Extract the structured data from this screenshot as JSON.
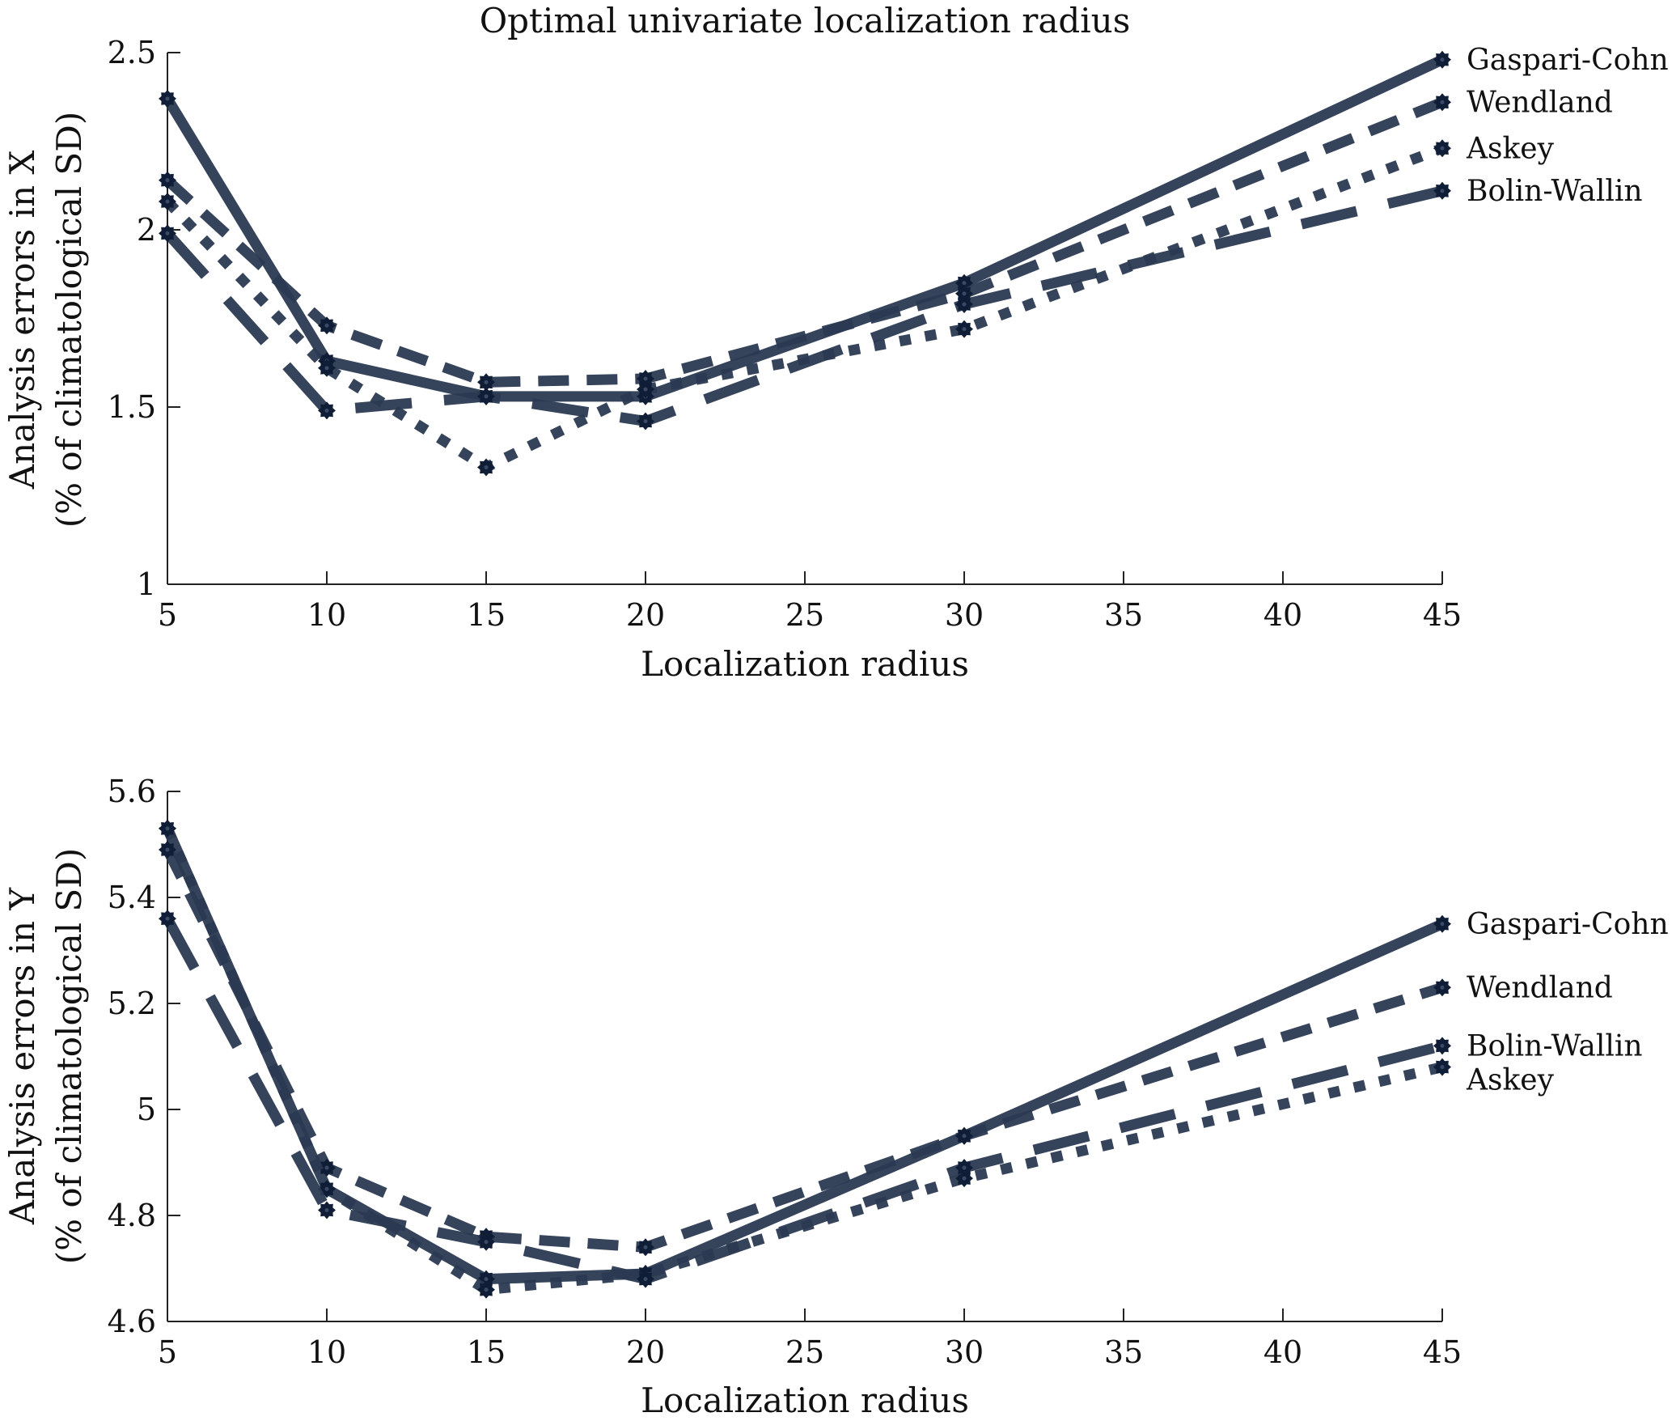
{
  "chart_data": [
    {
      "type": "line",
      "title": "Optimal univariate localization radius",
      "xlabel": "Localization radius",
      "ylabel_line1": "Analysis errors in X",
      "ylabel_line2": "(% of climatological SD)",
      "xlim": [
        5,
        45
      ],
      "ylim": [
        1,
        2.5
      ],
      "xticks": [
        5,
        10,
        15,
        20,
        25,
        30,
        35,
        40,
        45
      ],
      "xtick_labels": [
        "5",
        "10",
        "15",
        "20",
        "25",
        "30",
        "35",
        "40",
        "45"
      ],
      "yticks": [
        1,
        1.5,
        2,
        2.5
      ],
      "ytick_labels": [
        "1",
        "1.5",
        "2",
        "2.5"
      ],
      "grid": false,
      "legend_placement": "right (labels at line ends)",
      "x": [
        5,
        10,
        15,
        20,
        30,
        45
      ],
      "series": [
        {
          "name": "Gaspari-Cohn",
          "style": "solid",
          "values": [
            2.37,
            1.63,
            1.53,
            1.53,
            1.85,
            2.48
          ]
        },
        {
          "name": "Wendland",
          "style": "dashed",
          "values": [
            2.14,
            1.73,
            1.57,
            1.58,
            1.82,
            2.36
          ]
        },
        {
          "name": "Askey",
          "style": "dotted",
          "values": [
            2.08,
            1.61,
            1.33,
            1.55,
            1.72,
            2.23
          ]
        },
        {
          "name": "Bolin-Wallin",
          "style": "long-dash",
          "values": [
            1.99,
            1.49,
            1.53,
            1.46,
            1.79,
            2.11
          ]
        }
      ],
      "legend_order": [
        "Gaspari-Cohn",
        "Wendland",
        "Askey",
        "Bolin-Wallin"
      ]
    },
    {
      "type": "line",
      "title": "",
      "xlabel": "Localization radius",
      "ylabel_line1": "Analysis errors in Y",
      "ylabel_line2": "(% of climatological SD)",
      "xlim": [
        5,
        45
      ],
      "ylim": [
        4.6,
        5.6
      ],
      "xticks": [
        5,
        10,
        15,
        20,
        25,
        30,
        35,
        40,
        45
      ],
      "xtick_labels": [
        "5",
        "10",
        "15",
        "20",
        "25",
        "30",
        "35",
        "40",
        "45"
      ],
      "yticks": [
        4.6,
        4.8,
        5.0,
        5.2,
        5.4,
        5.6
      ],
      "ytick_labels": [
        "4.6",
        "4.8",
        "5",
        "5.2",
        "5.4",
        "5.6"
      ],
      "grid": false,
      "legend_placement": "right (labels at line ends)",
      "x": [
        5,
        10,
        15,
        20,
        30,
        45
      ],
      "series": [
        {
          "name": "Gaspari-Cohn",
          "style": "solid",
          "values": [
            5.53,
            4.85,
            4.68,
            4.69,
            4.95,
            5.35
          ]
        },
        {
          "name": "Wendland",
          "style": "dashed",
          "values": [
            5.49,
            4.89,
            4.76,
            4.74,
            4.95,
            5.23
          ]
        },
        {
          "name": "Askey",
          "style": "dotted",
          "values": [
            5.53,
            4.85,
            4.66,
            4.69,
            4.87,
            5.08
          ]
        },
        {
          "name": "Bolin-Wallin",
          "style": "long-dash",
          "values": [
            5.36,
            4.81,
            4.75,
            4.68,
            4.89,
            5.12
          ]
        }
      ],
      "legend_order": [
        "Gaspari-Cohn",
        "Wendland",
        "Bolin-Wallin",
        "Askey"
      ]
    }
  ]
}
